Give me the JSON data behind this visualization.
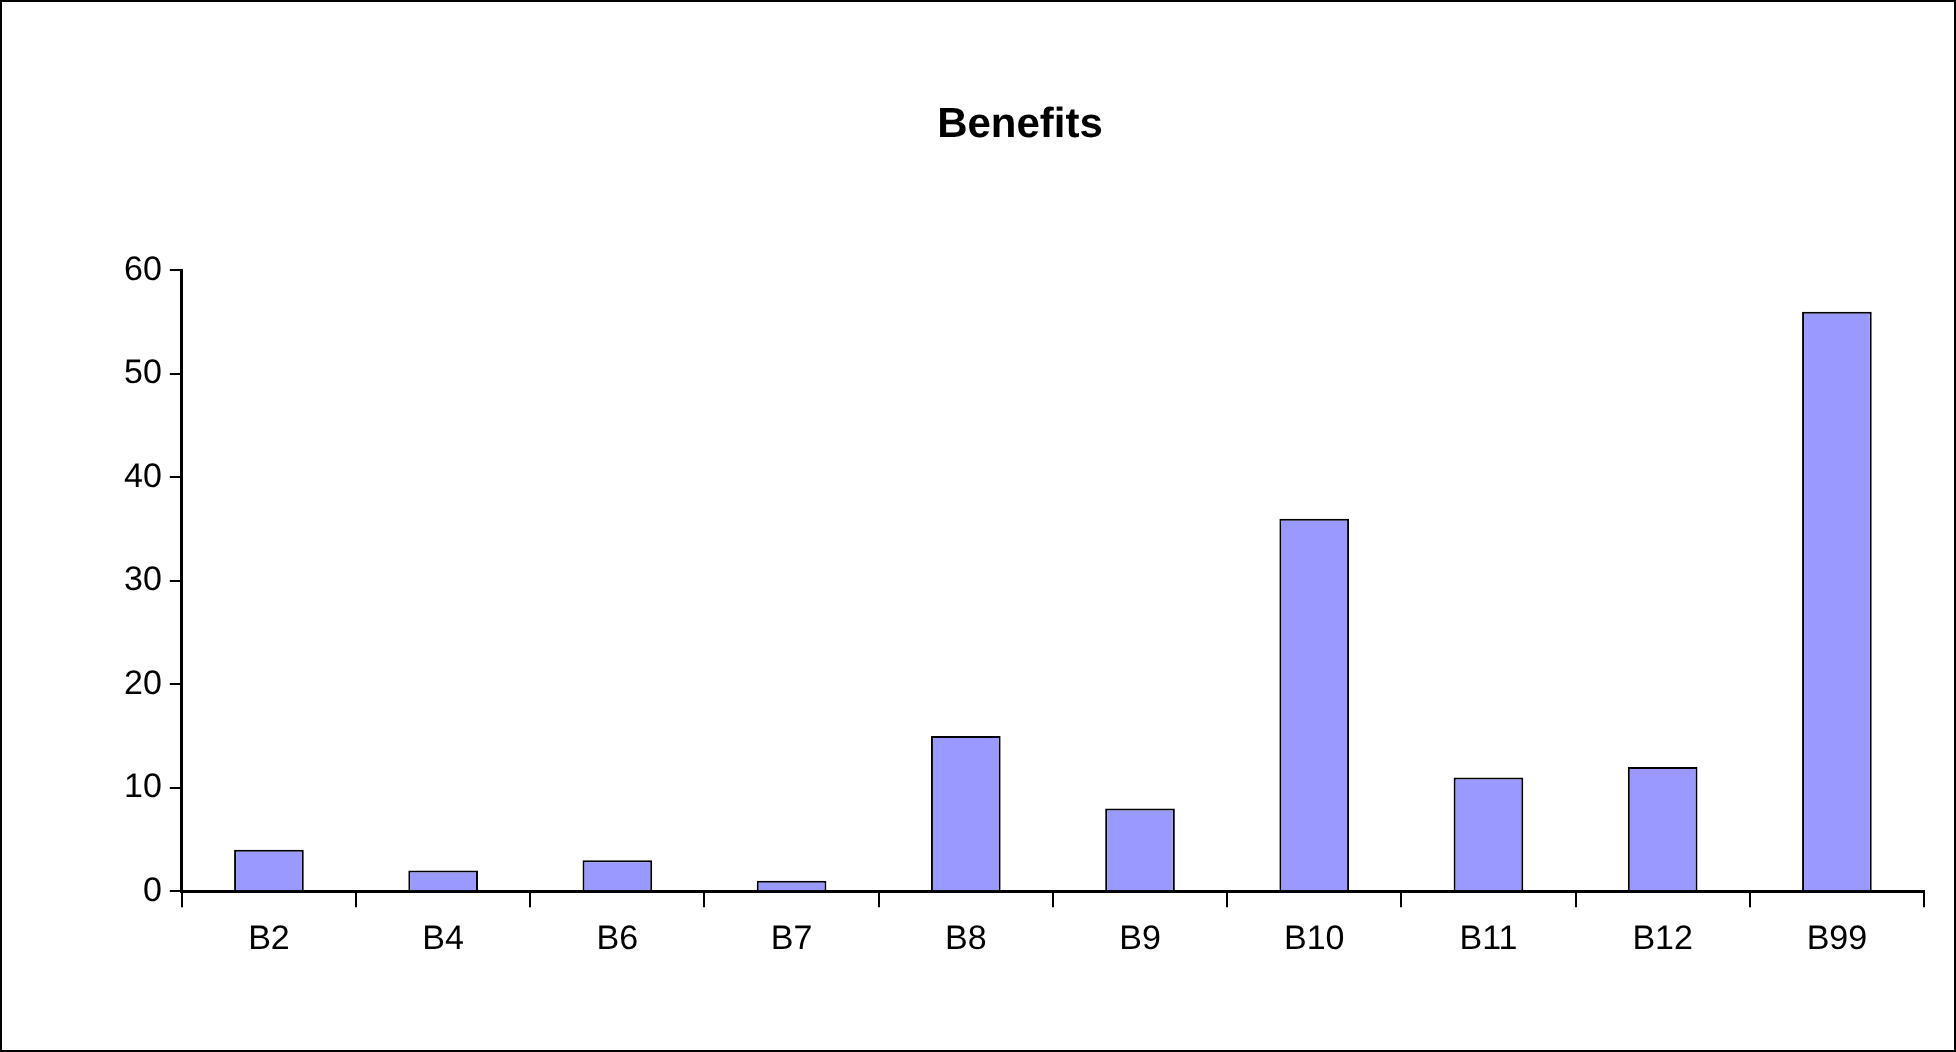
{
  "chart_data": {
    "type": "bar",
    "title": "Benefits",
    "categories": [
      "B2",
      "B4",
      "B6",
      "B7",
      "B8",
      "B9",
      "B10",
      "B11",
      "B12",
      "B99"
    ],
    "values": [
      4,
      2,
      3,
      1,
      15,
      8,
      36,
      11,
      12,
      56
    ],
    "color": "#9999ff",
    "ylim": [
      0,
      60
    ],
    "yticks": [
      0,
      10,
      20,
      30,
      40,
      50,
      60
    ],
    "grid": false,
    "legend": false
  }
}
